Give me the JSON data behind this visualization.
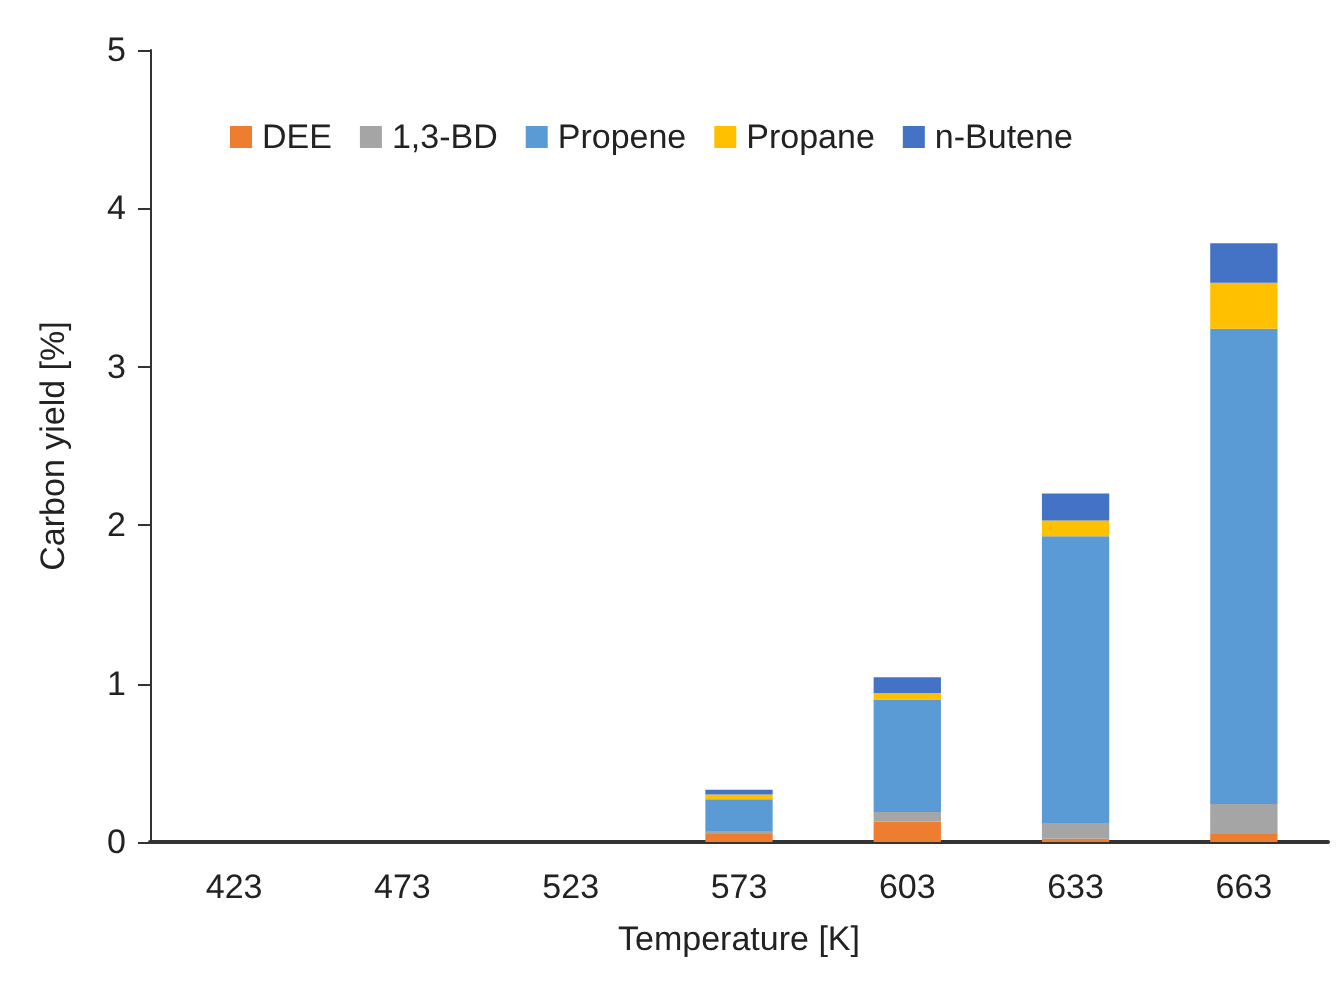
{
  "chart_data": {
    "type": "bar",
    "stacked": true,
    "xlabel": "Temperature [K]",
    "ylabel": "Carbon yield [%]",
    "categories": [
      "423",
      "473",
      "523",
      "573",
      "603",
      "633",
      "663"
    ],
    "series": [
      {
        "name": "DEE",
        "color": "#ed7d31",
        "values": [
          0,
          0,
          0,
          0.05,
          0.13,
          0.02,
          0.05
        ]
      },
      {
        "name": "1,3-BD",
        "color": "#a5a5a5",
        "values": [
          0,
          0,
          0,
          0.02,
          0.06,
          0.1,
          0.19
        ]
      },
      {
        "name": "Propene",
        "color": "#5b9bd5",
        "values": [
          0,
          0,
          0,
          0.2,
          0.71,
          1.81,
          3.0
        ]
      },
      {
        "name": "Propane",
        "color": "#ffc000",
        "values": [
          0,
          0,
          0,
          0.03,
          0.04,
          0.1,
          0.29
        ]
      },
      {
        "name": "n-Butene",
        "color": "#4472c4",
        "values": [
          0,
          0,
          0,
          0.03,
          0.1,
          0.17,
          0.25
        ]
      }
    ],
    "ylim": [
      0,
      5
    ],
    "yticks": [
      0,
      1,
      2,
      3,
      4,
      5
    ],
    "grid": false,
    "legend": "top"
  }
}
